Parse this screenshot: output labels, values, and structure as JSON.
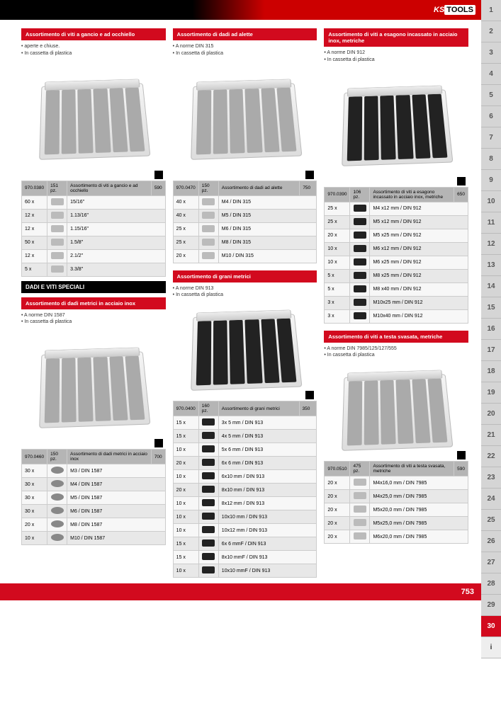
{
  "logo": {
    "ks": "KS",
    "tools": "TOOLS"
  },
  "page_number": "753",
  "tabs": [
    "1",
    "2",
    "3",
    "4",
    "5",
    "6",
    "7",
    "8",
    "9",
    "10",
    "11",
    "12",
    "13",
    "14",
    "15",
    "16",
    "17",
    "18",
    "19",
    "20",
    "21",
    "22",
    "23",
    "24",
    "25",
    "26",
    "27",
    "28",
    "29",
    "30",
    "i"
  ],
  "active_tab_index": 29,
  "section_header": "DADI E VITI SPECIALI",
  "products": {
    "hook_eye": {
      "title": "Assortimento di viti a gancio e ad occhiello",
      "notes": [
        "aperte e chiuse.",
        "In cassetta di plastica"
      ],
      "header": {
        "art": "970.0380",
        "pcs": "151 pz.",
        "desc": "Assortimento di viti a gancio e ad occhiello",
        "code": "590"
      },
      "rows": [
        {
          "qty": "60 x",
          "spec": "15/16\""
        },
        {
          "qty": "12 x",
          "spec": "1.13/16\""
        },
        {
          "qty": "12 x",
          "spec": "1.15/16\""
        },
        {
          "qty": "50 x",
          "spec": "1.5/8\""
        },
        {
          "qty": "12 x",
          "spec": "2.1/2\""
        },
        {
          "qty": "5 x",
          "spec": "3.3/8\""
        }
      ]
    },
    "wing_nuts": {
      "title": "Assortimento di dadi ad alette",
      "notes": [
        "A norme DIN 315",
        "In cassetta di plastica"
      ],
      "header": {
        "art": "970.0470",
        "pcs": "150 pz.",
        "desc": "Assortimento di dadi ad alette",
        "code": "750"
      },
      "rows": [
        {
          "qty": "40 x",
          "spec": "M4   / DIN 315"
        },
        {
          "qty": "40 x",
          "spec": "M5   / DIN 315"
        },
        {
          "qty": "25 x",
          "spec": "M6   / DIN 315"
        },
        {
          "qty": "25 x",
          "spec": "M8   / DIN 315"
        },
        {
          "qty": "20 x",
          "spec": "M10 / DIN 315"
        }
      ]
    },
    "hex_socket": {
      "title": "Assortimento di viti a esagono incassato in acciaio inox, metriche",
      "notes": [
        "A norme DIN 912",
        "In cassetta di plastica"
      ],
      "header": {
        "art": "970.0390",
        "pcs": "106 pz.",
        "desc": "Assortimento di viti a esagono incassato in acciaio inox, metriche",
        "code": "650"
      },
      "rows": [
        {
          "qty": "25 x",
          "spec": "M4  x12 mm / DIN 912"
        },
        {
          "qty": "25 x",
          "spec": "M5  x12 mm / DIN 912"
        },
        {
          "qty": "20 x",
          "spec": "M5  x25 mm / DIN 912"
        },
        {
          "qty": "10 x",
          "spec": "M6  x12 mm / DIN 912"
        },
        {
          "qty": "10 x",
          "spec": "M6  x25 mm / DIN 912"
        },
        {
          "qty": "5 x",
          "spec": "M8  x25 mm / DIN 912"
        },
        {
          "qty": "5 x",
          "spec": "M8  x40 mm / DIN 912"
        },
        {
          "qty": "3 x",
          "spec": "M10x25 mm / DIN 912"
        },
        {
          "qty": "3 x",
          "spec": "M10x40 mm / DIN 912"
        }
      ]
    },
    "grub": {
      "title": "Assortimento di grani metrici",
      "notes": [
        "A norme DIN 913",
        "In cassetta di plastica"
      ],
      "header": {
        "art": "970.0400",
        "pcs": "160 pz.",
        "desc": "Assortimento di grani metrici",
        "code": "350"
      },
      "rows": [
        {
          "qty": "15 x",
          "spec": "3x  5 mm    / DIN 913"
        },
        {
          "qty": "15 x",
          "spec": "4x  5 mm    / DIN 913"
        },
        {
          "qty": "10 x",
          "spec": "5x  6 mm    / DIN 913"
        },
        {
          "qty": "20 x",
          "spec": "6x  6 mm    / DIN 913"
        },
        {
          "qty": "10 x",
          "spec": "6x10 mm    / DIN 913"
        },
        {
          "qty": "20 x",
          "spec": "8x10 mm    / DIN 913"
        },
        {
          "qty": "10 x",
          "spec": "8x12 mm    / DIN 913"
        },
        {
          "qty": "10 x",
          "spec": "10x10 mm   / DIN 913"
        },
        {
          "qty": "10 x",
          "spec": "10x12 mm   / DIN 913"
        },
        {
          "qty": "15 x",
          "spec": "6x  6 mmF / DIN 913"
        },
        {
          "qty": "15 x",
          "spec": "8x10 mmF / DIN 913"
        },
        {
          "qty": "10 x",
          "spec": "10x10 mmF / DIN 913"
        }
      ]
    },
    "inox_nuts": {
      "title": "Assortimento di dadi metrici in acciaio inox",
      "notes": [
        "A norme DIN 1587",
        "In cassetta di plastica"
      ],
      "header": {
        "art": "970.0460",
        "pcs": "150 pz.",
        "desc": "Assortimento di dadi metrici in acciaio inox",
        "code": "700"
      },
      "rows": [
        {
          "qty": "30 x",
          "spec": "M3  / DIN 1587"
        },
        {
          "qty": "30 x",
          "spec": "M4   / DIN 1587"
        },
        {
          "qty": "30 x",
          "spec": "M5   / DIN 1587"
        },
        {
          "qty": "30 x",
          "spec": "M6   / DIN 1587"
        },
        {
          "qty": "20 x",
          "spec": "M8   / DIN 1587"
        },
        {
          "qty": "10 x",
          "spec": "M10 / DIN 1587"
        }
      ]
    },
    "countersunk": {
      "title": "Assortimento di viti a testa svasata, metriche",
      "notes": [
        "A norme DIN 7985/125/127/555",
        "In cassetta di plastica"
      ],
      "header": {
        "art": "970.0510",
        "pcs": "475 pz.",
        "desc": "Assortimento di viti a testa svasata, metriche",
        "code": "590"
      },
      "rows": [
        {
          "qty": "20 x",
          "spec": "M4x16,0 mm / DIN 7985"
        },
        {
          "qty": "20 x",
          "spec": "M4x25,0 mm / DIN 7985"
        },
        {
          "qty": "20 x",
          "spec": "M5x20,0 mm / DIN 7985"
        },
        {
          "qty": "20 x",
          "spec": "M5x25,0 mm / DIN 7985"
        },
        {
          "qty": "20 x",
          "spec": "M6x20,0 mm / DIN 7985"
        }
      ]
    }
  }
}
